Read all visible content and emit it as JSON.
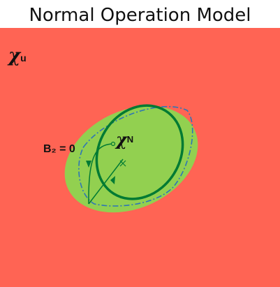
{
  "title": "Normal Operation Model",
  "labels": {
    "unsafe_set_symbol": "χ",
    "unsafe_set_sub": "u",
    "normal_set_symbol": "χ",
    "normal_set_sub": "N",
    "boundary_label": "B₂ = 0"
  },
  "colors": {
    "unsafe_region": "#ff6454",
    "safe_region": "#92d050",
    "normal_boundary": "#007a33",
    "estimated_boundary": "#2e75b6",
    "trajectory": "#007a33"
  }
}
